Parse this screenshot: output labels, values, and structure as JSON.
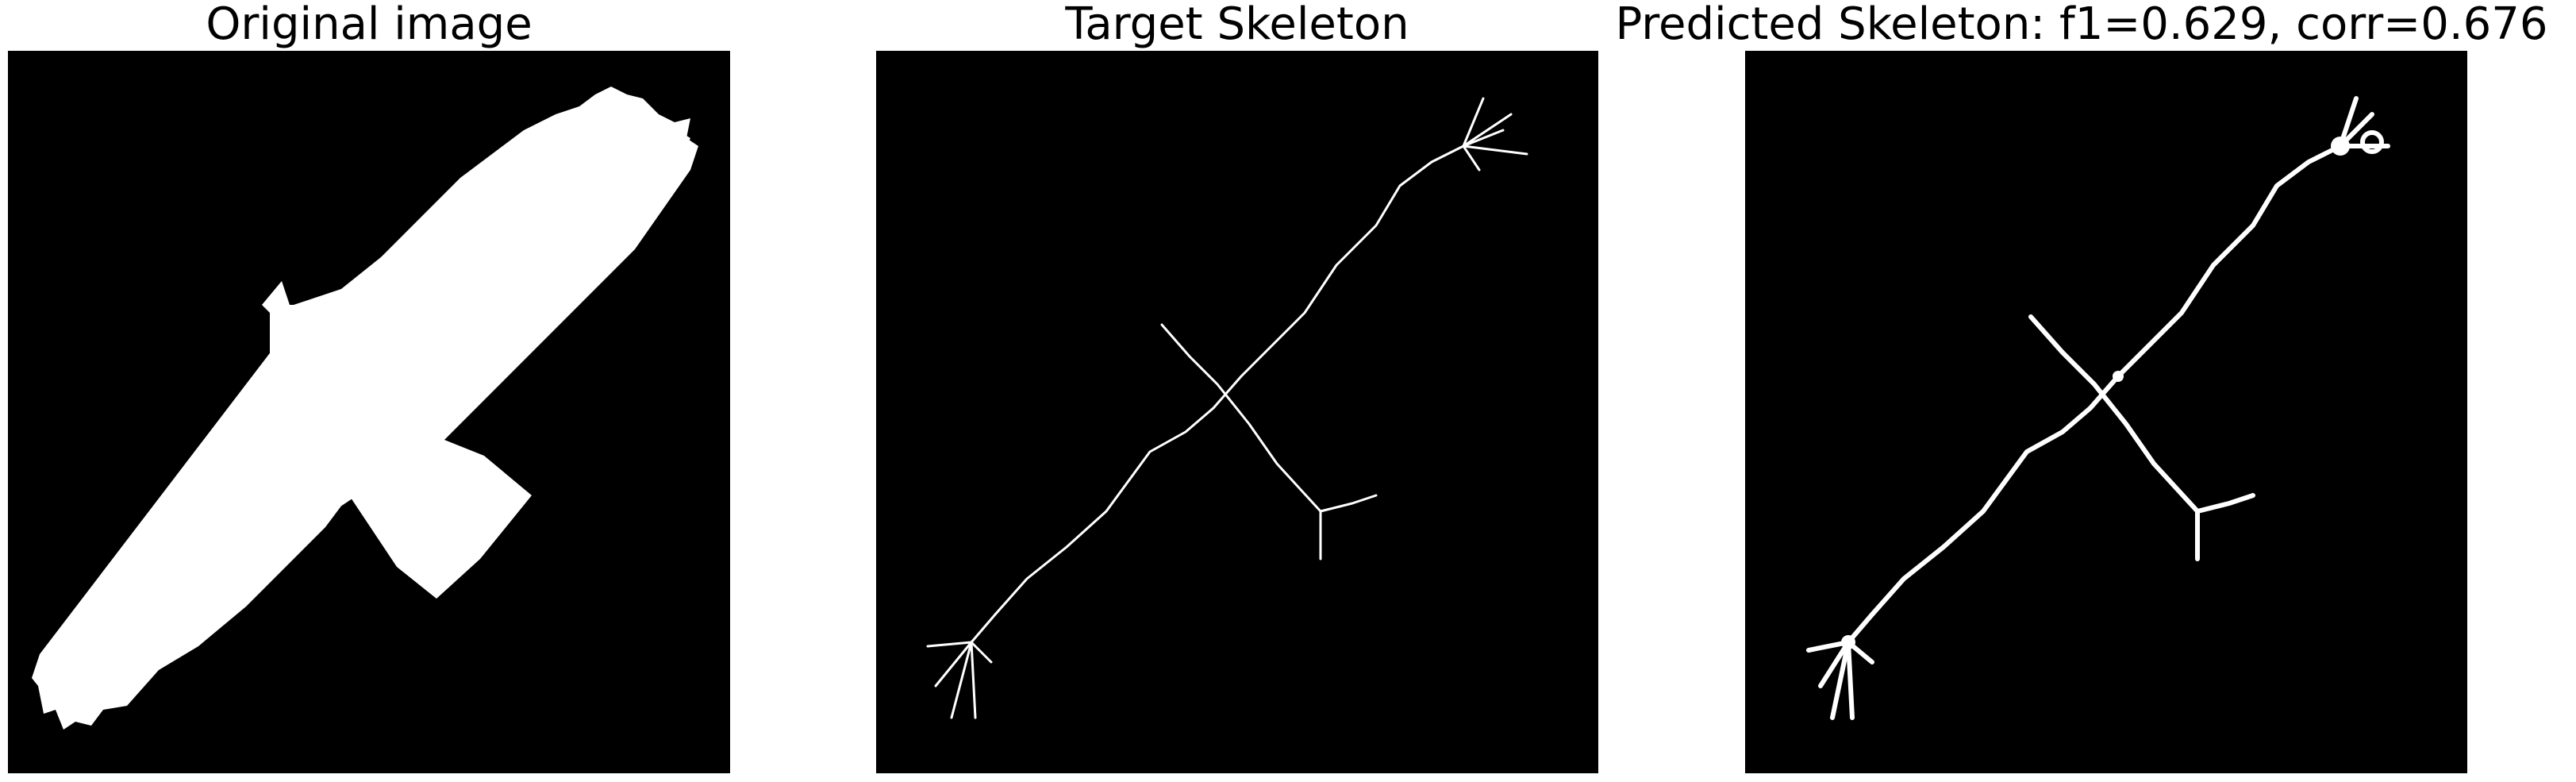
{
  "panels": [
    {
      "title": "Original image"
    },
    {
      "title": "Target Skeleton"
    },
    {
      "title": "Predicted Skeleton: f1=0.629, corr=0.676"
    }
  ],
  "colors": {
    "background": "#000000",
    "foreground": "#ffffff",
    "page": "#ffffff"
  }
}
